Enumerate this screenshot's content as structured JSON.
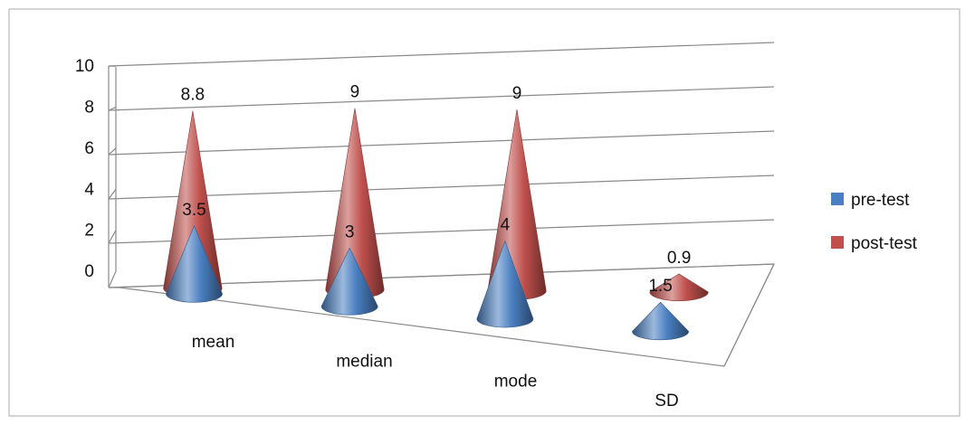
{
  "chart_data": {
    "type": "bar",
    "style": "3d-cone",
    "categories": [
      "mean",
      "median",
      "mode",
      "SD"
    ],
    "series": [
      {
        "name": "pre-test",
        "values": [
          3.5,
          3,
          4,
          1.5
        ],
        "color": "#4a7fc1"
      },
      {
        "name": "post-test",
        "values": [
          8.8,
          9,
          9,
          0.9
        ],
        "color": "#c0504d"
      }
    ],
    "ylim": [
      0,
      10
    ],
    "yticks": [
      0,
      2,
      4,
      6,
      8,
      10
    ],
    "grid": true,
    "legend_position": "right",
    "title": "",
    "xlabel": "",
    "ylabel": ""
  }
}
